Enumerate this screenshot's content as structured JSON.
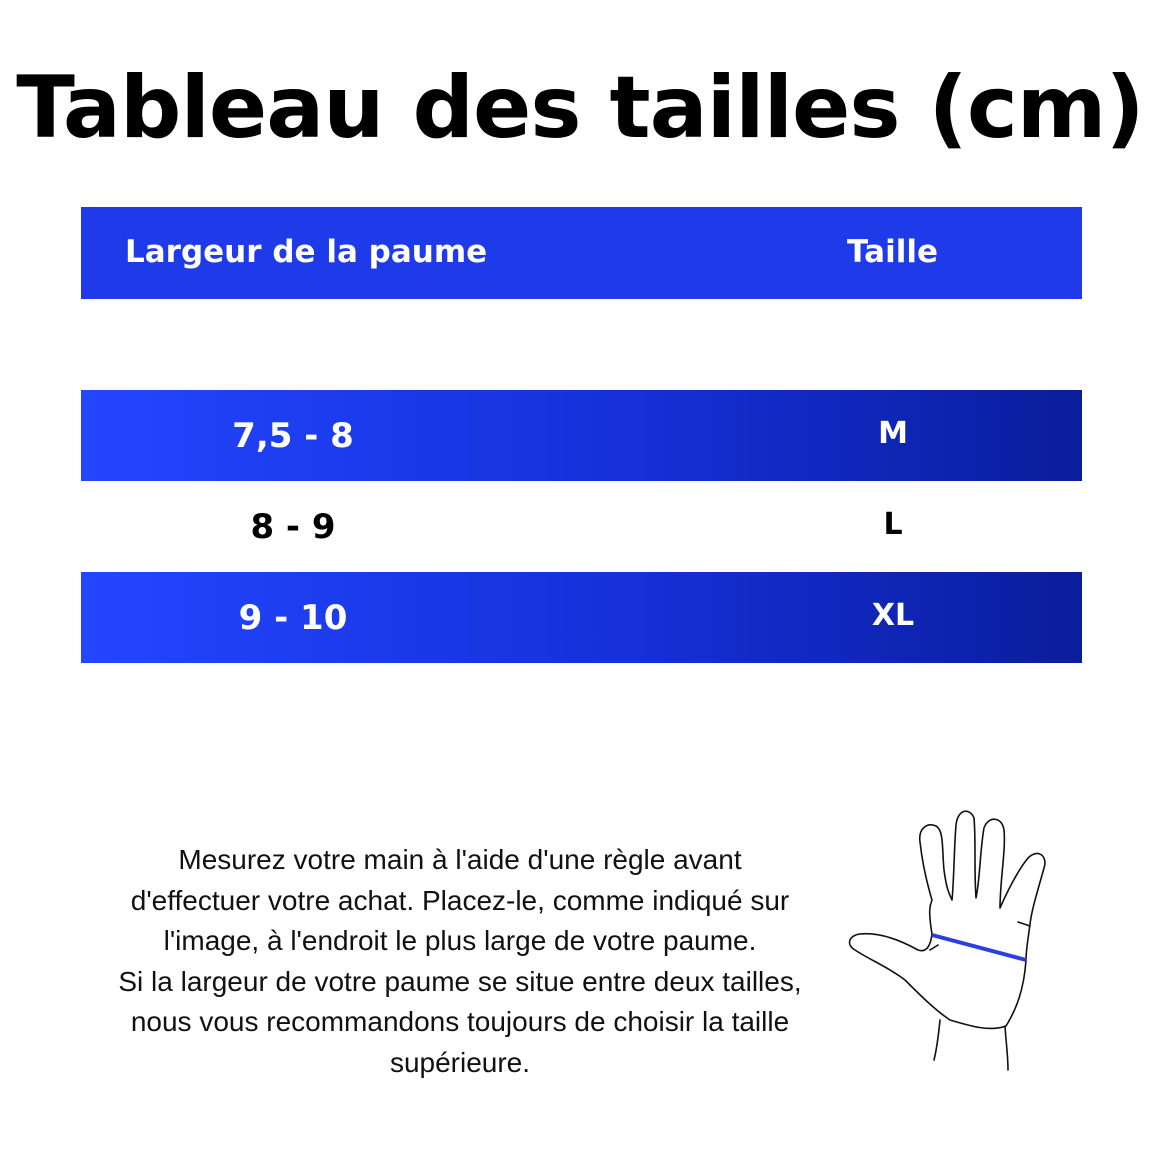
{
  "title": "Tableau des tailles (cm)",
  "table": {
    "headers": [
      "Largeur de la paume",
      "Taille"
    ],
    "rows": [
      {
        "palm": "7,5 - 8",
        "size": "M"
      },
      {
        "palm": "8 - 9",
        "size": "L"
      },
      {
        "palm": "9 - 10",
        "size": "XL"
      }
    ]
  },
  "note": {
    "lines": [
      "Mesurez votre main à l'aide d'une règle avant",
      "d'effectuer votre achat. Placez-le, comme indiqué sur",
      "l'image, à l'endroit le plus large de votre paume.",
      "Si la largeur de votre paume se situe entre deux tailles,",
      "nous vous recommandons toujours de choisir la taille",
      "supérieure."
    ]
  },
  "colors": {
    "header": "#1f3ae8",
    "row_gradient_start": "#2346ff",
    "row_gradient_end": "#0a1d9c",
    "measure_line": "#2a3fe0"
  }
}
